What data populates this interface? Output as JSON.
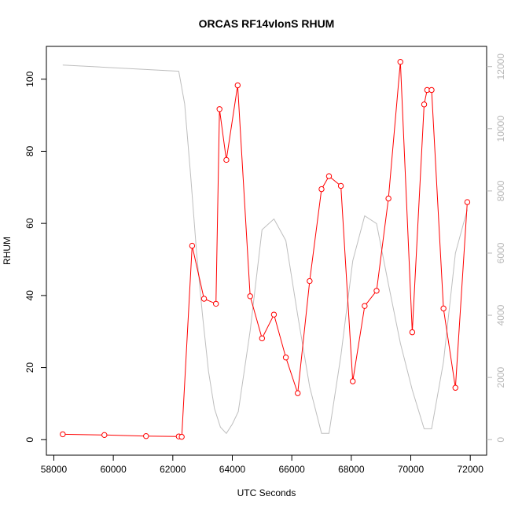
{
  "chart_data": {
    "type": "line",
    "title": "ORCAS RF14vlonS RHUM",
    "xlabel": "UTC Seconds",
    "ylabel": "RHUM",
    "xlim": [
      57750,
      72550
    ],
    "ylim": [
      -4.3,
      109.1
    ],
    "y2lim": [
      -500,
      12650
    ],
    "x_ticks": [
      58000,
      60000,
      62000,
      64000,
      66000,
      68000,
      70000,
      72000
    ],
    "x_tick_labels": [
      "58000",
      "60000",
      "62000",
      "64000",
      "66000",
      "68000",
      "70000",
      "72000"
    ],
    "y_ticks": [
      0,
      20,
      40,
      60,
      80,
      100
    ],
    "y_tick_labels": [
      "0",
      "20",
      "40",
      "60",
      "80",
      "100"
    ],
    "y2_ticks": [
      0,
      2000,
      4000,
      6000,
      8000,
      10000,
      12000
    ],
    "y2_tick_labels": [
      "0",
      "2000",
      "4000",
      "6000",
      "8000",
      "10000",
      "12000"
    ],
    "grid": false,
    "series": [
      {
        "axis": "left",
        "color": "#ff0000",
        "marker": "open-circle",
        "x": [
          58300,
          59700,
          61100,
          62200,
          62300,
          62650,
          63050,
          63450,
          63570,
          63800,
          64180,
          64600,
          65000,
          65400,
          65800,
          66200,
          66600,
          67000,
          67250,
          67650,
          68050,
          68450,
          68850,
          69250,
          69650,
          70050,
          70450,
          70550,
          70700,
          71100,
          71500,
          71900
        ],
        "y": [
          1.5,
          1.3,
          1.0,
          0.9,
          0.8,
          53.8,
          39.1,
          37.7,
          91.7,
          77.6,
          98.3,
          39.8,
          28.1,
          34.7,
          22.8,
          12.9,
          44.0,
          69.5,
          73.1,
          70.4,
          16.2,
          37.1,
          41.3,
          66.9,
          104.8,
          29.8,
          93.0,
          97.0,
          97.0,
          36.4,
          14.4,
          65.9
        ]
      },
      {
        "axis": "right",
        "color": "#bebebe",
        "marker": "none",
        "x": [
          58300,
          62200,
          62400,
          62600,
          62800,
          63000,
          63200,
          63400,
          63600,
          63800,
          64000,
          64200,
          64600,
          65000,
          65400,
          65800,
          66200,
          66600,
          67000,
          67250,
          67650,
          68050,
          68450,
          68850,
          69250,
          69650,
          70050,
          70450,
          70700,
          71100,
          71500,
          71900
        ],
        "y": [
          12050,
          11850,
          10800,
          8500,
          6000,
          4000,
          2200,
          1000,
          400,
          200,
          500,
          900,
          3500,
          6750,
          7100,
          6400,
          4000,
          1700,
          200,
          200,
          2700,
          5750,
          7200,
          6950,
          5000,
          3100,
          1600,
          350,
          350,
          2500,
          6000,
          7400
        ]
      }
    ]
  }
}
